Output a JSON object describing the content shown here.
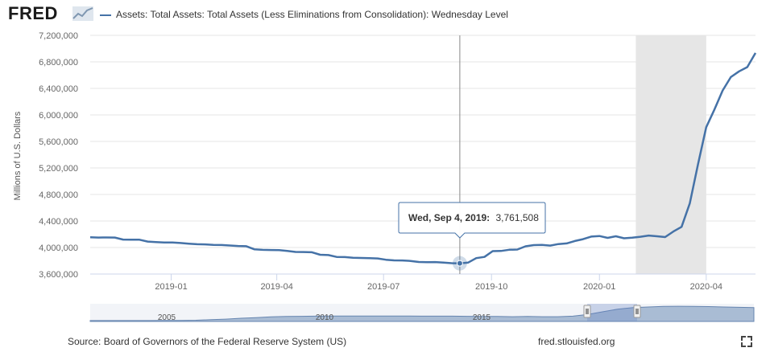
{
  "header": {
    "logo_text": "FRED",
    "series_label": "Assets: Total Assets: Total Assets (Less Eliminations from Consolidation): Wednesday Level"
  },
  "chart_data": {
    "type": "line",
    "ylabel": "Millions of U.S. Dollars",
    "ylim": [
      3600000,
      7200000
    ],
    "yticks": [
      3600000,
      4000000,
      4400000,
      4800000,
      5200000,
      5600000,
      6000000,
      6400000,
      6800000,
      7200000
    ],
    "ytick_labels": [
      "3,600,000",
      "4,000,000",
      "4,400,000",
      "4,800,000",
      "5,200,000",
      "5,600,000",
      "6,000,000",
      "6,400,000",
      "6,800,000",
      "7,200,000"
    ],
    "xlim": [
      "2018-10-24",
      "2020-05-13"
    ],
    "xticks": [
      "2019-01-01",
      "2019-04-01",
      "2019-07-01",
      "2019-10-01",
      "2020-01-01",
      "2020-04-01"
    ],
    "xtick_labels": [
      "2019-01",
      "2019-04",
      "2019-07",
      "2019-10",
      "2020-01",
      "2020-04"
    ],
    "recession": [
      "2020-02-01",
      "2020-04-01"
    ],
    "grid": true,
    "line_color": "#4572a7",
    "series": [
      {
        "name": "Assets: Total Assets: Total Assets (Less Eliminations from Consolidation): Wednesday Level",
        "points": [
          [
            "2018-10-24",
            4154000
          ],
          [
            "2018-10-31",
            4150000
          ],
          [
            "2018-11-07",
            4152000
          ],
          [
            "2018-11-14",
            4150000
          ],
          [
            "2018-11-21",
            4120000
          ],
          [
            "2018-11-28",
            4118000
          ],
          [
            "2018-12-05",
            4118000
          ],
          [
            "2018-12-12",
            4090000
          ],
          [
            "2018-12-19",
            4083000
          ],
          [
            "2018-12-26",
            4076000
          ],
          [
            "2019-01-02",
            4075000
          ],
          [
            "2019-01-09",
            4068000
          ],
          [
            "2019-01-16",
            4058000
          ],
          [
            "2019-01-23",
            4050000
          ],
          [
            "2019-01-30",
            4047000
          ],
          [
            "2019-02-06",
            4040000
          ],
          [
            "2019-02-13",
            4038000
          ],
          [
            "2019-02-20",
            4030000
          ],
          [
            "2019-02-27",
            4023000
          ],
          [
            "2019-03-06",
            4020000
          ],
          [
            "2019-03-13",
            3972000
          ],
          [
            "2019-03-20",
            3965000
          ],
          [
            "2019-03-27",
            3962000
          ],
          [
            "2019-04-03",
            3960000
          ],
          [
            "2019-04-10",
            3948000
          ],
          [
            "2019-04-17",
            3933000
          ],
          [
            "2019-04-24",
            3932000
          ],
          [
            "2019-05-01",
            3928000
          ],
          [
            "2019-05-08",
            3891000
          ],
          [
            "2019-05-15",
            3886000
          ],
          [
            "2019-05-22",
            3858000
          ],
          [
            "2019-05-29",
            3856000
          ],
          [
            "2019-06-05",
            3846000
          ],
          [
            "2019-06-12",
            3842000
          ],
          [
            "2019-06-19",
            3840000
          ],
          [
            "2019-06-26",
            3835000
          ],
          [
            "2019-07-03",
            3816000
          ],
          [
            "2019-07-10",
            3806000
          ],
          [
            "2019-07-17",
            3805000
          ],
          [
            "2019-07-24",
            3798000
          ],
          [
            "2019-07-31",
            3782000
          ],
          [
            "2019-08-07",
            3779000
          ],
          [
            "2019-08-14",
            3781000
          ],
          [
            "2019-08-21",
            3772000
          ],
          [
            "2019-08-28",
            3764000
          ],
          [
            "2019-09-04",
            3761508
          ],
          [
            "2019-09-11",
            3772000
          ],
          [
            "2019-09-18",
            3840000
          ],
          [
            "2019-09-25",
            3858000
          ],
          [
            "2019-10-02",
            3945000
          ],
          [
            "2019-10-09",
            3948000
          ],
          [
            "2019-10-16",
            3966000
          ],
          [
            "2019-10-23",
            3970000
          ],
          [
            "2019-10-30",
            4018000
          ],
          [
            "2019-11-06",
            4036000
          ],
          [
            "2019-11-13",
            4040000
          ],
          [
            "2019-11-20",
            4029000
          ],
          [
            "2019-11-27",
            4052000
          ],
          [
            "2019-12-04",
            4062000
          ],
          [
            "2019-12-11",
            4098000
          ],
          [
            "2019-12-18",
            4126000
          ],
          [
            "2019-12-25",
            4165000
          ],
          [
            "2020-01-01",
            4173000
          ],
          [
            "2020-01-08",
            4145000
          ],
          [
            "2020-01-15",
            4170000
          ],
          [
            "2020-01-22",
            4139000
          ],
          [
            "2020-01-29",
            4148000
          ],
          [
            "2020-02-05",
            4162000
          ],
          [
            "2020-02-12",
            4180000
          ],
          [
            "2020-02-19",
            4170000
          ],
          [
            "2020-02-26",
            4158000
          ],
          [
            "2020-03-04",
            4241000
          ],
          [
            "2020-03-11",
            4312000
          ],
          [
            "2020-03-18",
            4666000
          ],
          [
            "2020-03-25",
            5255000
          ],
          [
            "2020-04-01",
            5815000
          ],
          [
            "2020-04-08",
            6081000
          ],
          [
            "2020-04-15",
            6368000
          ],
          [
            "2020-04-22",
            6571000
          ],
          [
            "2020-04-29",
            6657000
          ],
          [
            "2020-05-06",
            6721000
          ],
          [
            "2020-05-13",
            6935000
          ]
        ]
      }
    ],
    "tooltip": {
      "date_label": "Wed, Sep 4, 2019:",
      "value_label": "3,761,508",
      "date": "2019-09-04",
      "value": 3761508
    },
    "navigator_labels": [
      "2005",
      "2010",
      "2015"
    ]
  },
  "footer": {
    "source": "Source: Board of Governors of the Federal Reserve System (US)",
    "url": "fred.stlouisfed.org"
  }
}
